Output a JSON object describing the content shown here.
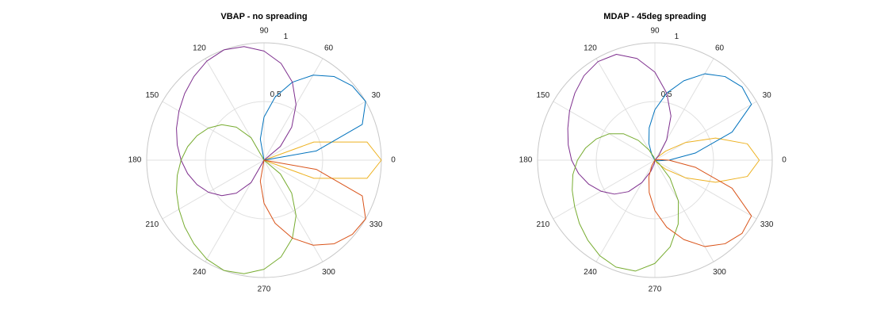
{
  "chart_data": [
    {
      "type": "polar",
      "title": "VBAP - no spreading",
      "theta": [
        0,
        10,
        20,
        30,
        40,
        50,
        60,
        70,
        80,
        90,
        100,
        110,
        120,
        130,
        140,
        150,
        160,
        170,
        180,
        190,
        200,
        210,
        220,
        230,
        240,
        250,
        260,
        270,
        280,
        290,
        300,
        310,
        320,
        330,
        340,
        350,
        360
      ],
      "rlim": [
        0,
        1
      ],
      "rticks": [
        0.5,
        1
      ],
      "thetaticks": [
        0,
        30,
        60,
        90,
        120,
        150,
        180,
        210,
        240,
        270,
        300,
        330
      ],
      "grid": true,
      "series": [
        {
          "color": "#EDB120",
          "values": [
            1,
            0.891,
            0.452,
            0,
            0,
            0,
            0,
            0,
            0,
            0,
            0,
            0,
            0,
            0,
            0,
            0,
            0,
            0,
            0,
            0,
            0,
            0,
            0,
            0,
            0,
            0,
            0,
            0,
            0,
            0,
            0,
            0,
            0,
            0,
            0.452,
            0.891,
            1
          ]
        },
        {
          "color": "#0072BD",
          "values": [
            0,
            0.452,
            0.891,
            1,
            0.983,
            0.93,
            0.837,
            0.707,
            0.546,
            0.367,
            0.182,
            0,
            0,
            0,
            0,
            0,
            0,
            0,
            0,
            0,
            0,
            0,
            0,
            0,
            0,
            0,
            0,
            0,
            0,
            0,
            0,
            0,
            0,
            0,
            0,
            0,
            0
          ]
        },
        {
          "color": "#7E2F8E",
          "values": [
            0,
            0,
            0,
            0,
            0.182,
            0.367,
            0.546,
            0.707,
            0.837,
            0.93,
            0.983,
            1,
            0.975,
            0.93,
            0.883,
            0.837,
            0.794,
            0.751,
            0.707,
            0.661,
            0.608,
            0.547,
            0.47,
            0.367,
            0.221,
            0,
            0,
            0,
            0,
            0,
            0,
            0,
            0,
            0,
            0,
            0,
            0
          ]
        },
        {
          "color": "#77AC30",
          "values": [
            0,
            0,
            0,
            0,
            0,
            0,
            0,
            0,
            0,
            0,
            0,
            0,
            0.221,
            0.367,
            0.47,
            0.547,
            0.608,
            0.661,
            0.707,
            0.751,
            0.794,
            0.837,
            0.883,
            0.93,
            0.975,
            1,
            0.983,
            0.93,
            0.837,
            0.707,
            0.546,
            0.367,
            0.182,
            0,
            0,
            0,
            0
          ]
        },
        {
          "color": "#D95319",
          "values": [
            0,
            0,
            0,
            0,
            0,
            0,
            0,
            0,
            0,
            0,
            0,
            0,
            0,
            0,
            0,
            0,
            0,
            0,
            0,
            0,
            0,
            0,
            0,
            0,
            0,
            0,
            0.182,
            0.367,
            0.546,
            0.707,
            0.837,
            0.93,
            0.983,
            1,
            0.891,
            0.452,
            0
          ]
        }
      ]
    },
    {
      "type": "polar",
      "title": "MDAP - 45deg spreading",
      "theta": [
        0,
        10,
        20,
        30,
        40,
        50,
        60,
        70,
        80,
        90,
        100,
        110,
        120,
        130,
        140,
        150,
        160,
        170,
        180,
        190,
        200,
        210,
        220,
        230,
        240,
        250,
        260,
        270,
        280,
        290,
        300,
        310,
        320,
        330,
        340,
        350,
        360
      ],
      "rlim": [
        0,
        1
      ],
      "rticks": [
        0.5,
        1
      ],
      "thetaticks": [
        0,
        30,
        60,
        90,
        120,
        150,
        180,
        210,
        240,
        270,
        300,
        330
      ],
      "grid": true,
      "series": [
        {
          "color": "#EDB120",
          "values": [
            0.89,
            0.8,
            0.55,
            0.3,
            0.12,
            0.03,
            0,
            0,
            0,
            0,
            0,
            0,
            0,
            0,
            0,
            0,
            0,
            0,
            0,
            0,
            0,
            0,
            0,
            0,
            0,
            0,
            0,
            0,
            0,
            0,
            0,
            0.03,
            0.12,
            0.3,
            0.55,
            0.8,
            0.89
          ]
        },
        {
          "color": "#0072BD",
          "values": [
            0.12,
            0.35,
            0.7,
            0.95,
            0.97,
            0.93,
            0.85,
            0.72,
            0.58,
            0.43,
            0.28,
            0.15,
            0.05,
            0,
            0,
            0,
            0,
            0,
            0,
            0,
            0,
            0,
            0,
            0,
            0,
            0,
            0,
            0,
            0,
            0,
            0,
            0,
            0,
            0,
            0,
            0.03,
            0.12
          ]
        },
        {
          "color": "#7E2F8E",
          "values": [
            0,
            0,
            0,
            0,
            0,
            0.05,
            0.2,
            0.4,
            0.58,
            0.75,
            0.88,
            0.96,
            0.97,
            0.94,
            0.89,
            0.84,
            0.79,
            0.75,
            0.71,
            0.66,
            0.6,
            0.53,
            0.45,
            0.35,
            0.22,
            0.1,
            0.03,
            0,
            0,
            0,
            0,
            0,
            0,
            0,
            0,
            0,
            0
          ]
        },
        {
          "color": "#77AC30",
          "values": [
            0,
            0,
            0,
            0,
            0,
            0,
            0,
            0,
            0,
            0,
            0,
            0.03,
            0.1,
            0.22,
            0.35,
            0.45,
            0.53,
            0.6,
            0.66,
            0.71,
            0.75,
            0.79,
            0.84,
            0.89,
            0.94,
            0.97,
            0.96,
            0.88,
            0.75,
            0.58,
            0.4,
            0.2,
            0.05,
            0,
            0,
            0,
            0
          ]
        },
        {
          "color": "#D95319",
          "values": [
            0.12,
            0.03,
            0,
            0,
            0,
            0,
            0,
            0,
            0,
            0,
            0,
            0,
            0,
            0,
            0,
            0,
            0,
            0,
            0,
            0,
            0,
            0,
            0,
            0,
            0.05,
            0.15,
            0.28,
            0.43,
            0.58,
            0.72,
            0.85,
            0.93,
            0.97,
            0.95,
            0.7,
            0.35,
            0.12
          ]
        }
      ]
    }
  ]
}
